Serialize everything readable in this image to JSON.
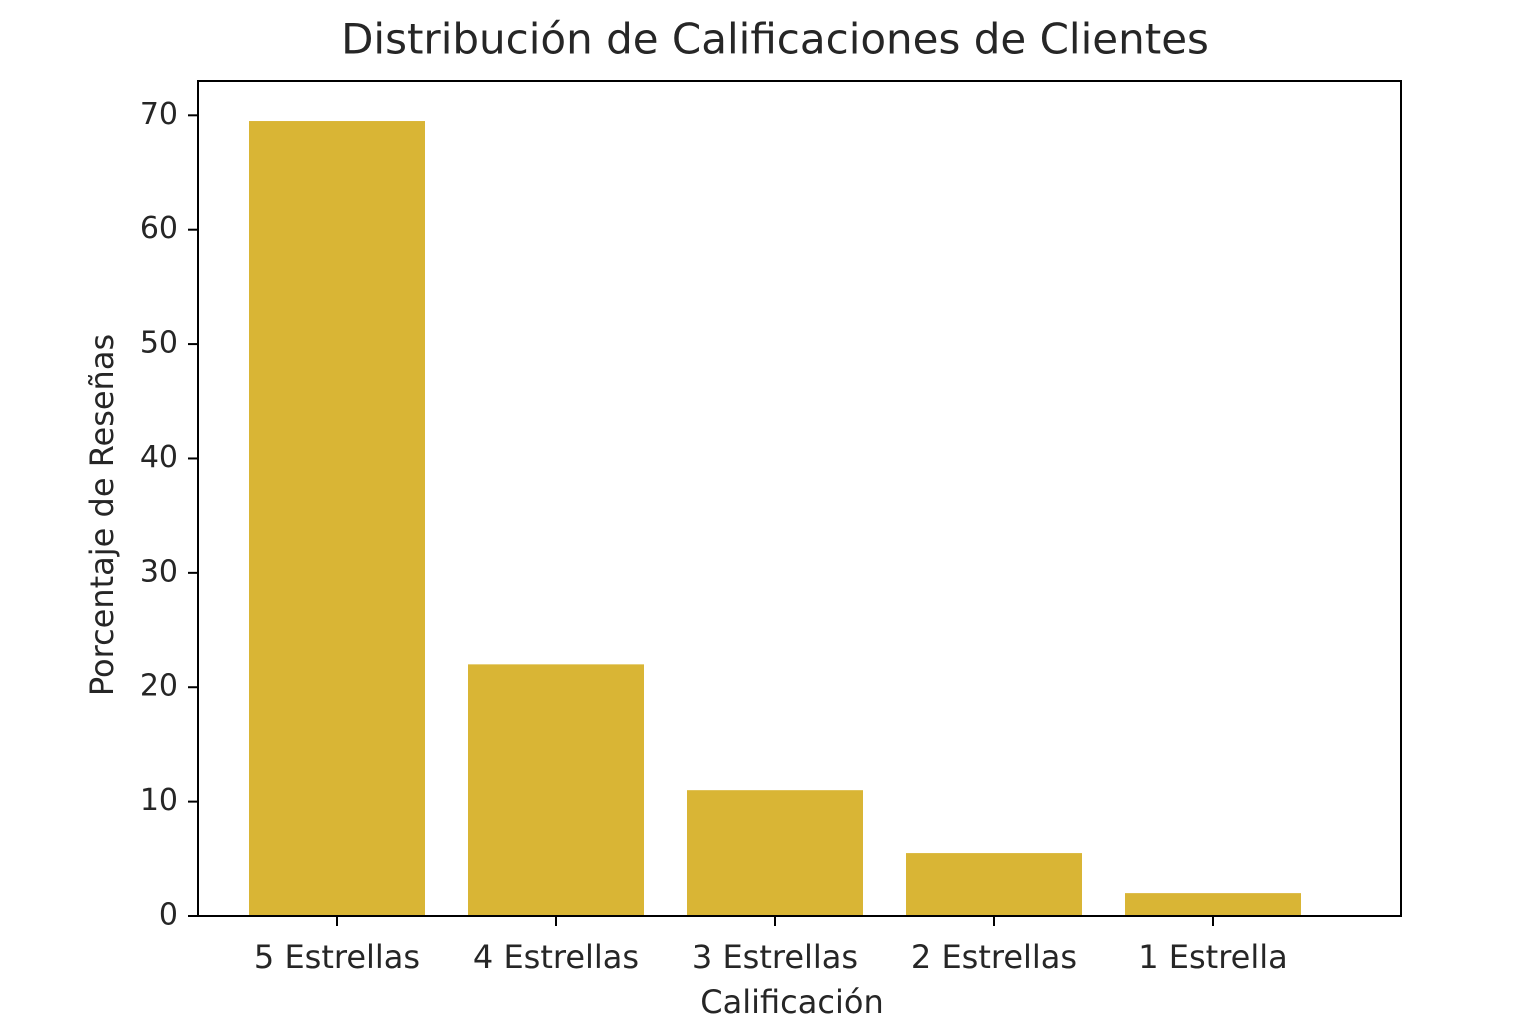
{
  "chart_data": {
    "type": "bar",
    "title": "Distribución de Calificaciones de Clientes",
    "x_label": "Calificación",
    "y_label": "Porcentaje de Reseñas",
    "categories": [
      "5 Estrellas",
      "4 Estrellas",
      "3 Estrellas",
      "2 Estrellas",
      "1 Estrella"
    ],
    "values": [
      69.5,
      22,
      11,
      5.5,
      2
    ],
    "color": "#d9b535",
    "ylim": [
      0,
      73
    ],
    "yticks": [
      0,
      10,
      20,
      30,
      40,
      50,
      60,
      70
    ],
    "grid": false
  }
}
